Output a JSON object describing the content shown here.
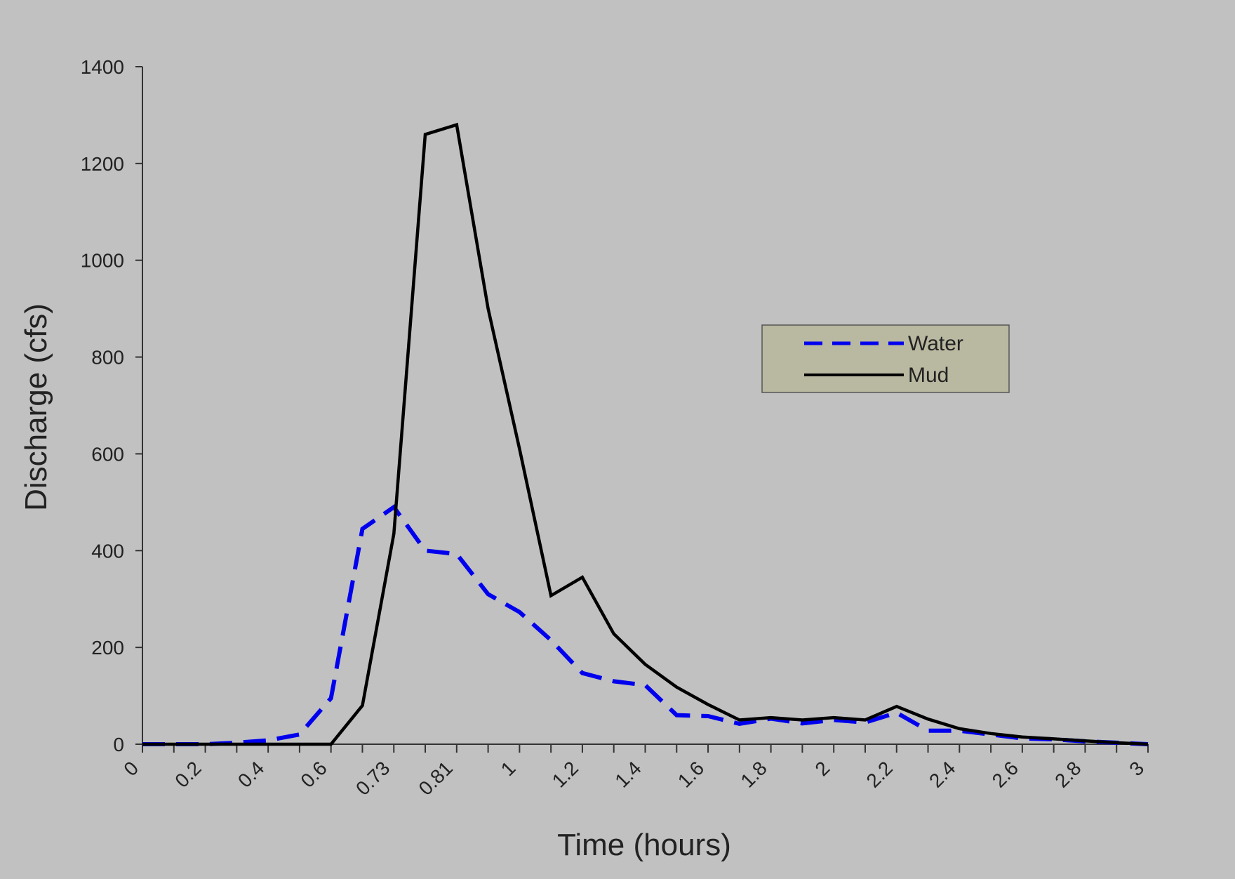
{
  "chart_data": {
    "type": "line",
    "title": "",
    "xlabel": "Time (hours)",
    "ylabel": "Discharge (cfs)",
    "ylim": [
      0,
      1400
    ],
    "y_ticks": [
      0,
      200,
      400,
      600,
      800,
      1000,
      1200,
      1400
    ],
    "x_tick_labels": [
      "0",
      "0.2",
      "0.4",
      "0.6",
      "0.73",
      "0.81",
      "1",
      "1.2",
      "1.4",
      "1.6",
      "1.8",
      "2",
      "2.2",
      "2.4",
      "2.6",
      "2.8",
      "3"
    ],
    "x_labeled_every": 2,
    "categories_count": 33,
    "grid": false,
    "legend_position": "right",
    "series": [
      {
        "name": "Water",
        "color": "#0000ee",
        "style": "dashed",
        "values": [
          0,
          0,
          0,
          3,
          8,
          20,
          95,
          445,
          490,
          400,
          393,
          310,
          273,
          215,
          147,
          130,
          122,
          60,
          58,
          42,
          53,
          43,
          50,
          45,
          65,
          28,
          28,
          20,
          12,
          10,
          6,
          3,
          0
        ]
      },
      {
        "name": "Mud",
        "color": "#000000",
        "style": "solid",
        "values": [
          0,
          0,
          0,
          0,
          0,
          0,
          0,
          80,
          435,
          1260,
          1280,
          900,
          610,
          307,
          345,
          228,
          165,
          118,
          82,
          50,
          55,
          50,
          55,
          50,
          78,
          52,
          32,
          22,
          15,
          11,
          7,
          3,
          0
        ]
      }
    ]
  }
}
